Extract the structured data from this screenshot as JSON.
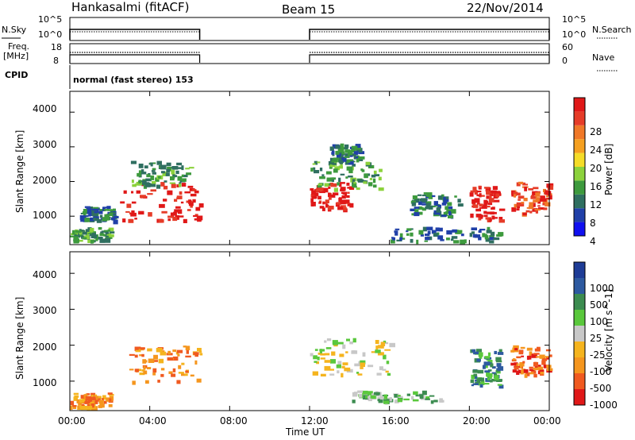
{
  "header": {
    "station": "Hankasalmi (fitACF)",
    "beam": "Beam 15",
    "date": "22/Nov/2014"
  },
  "strips": {
    "nsky_label": "N.Sky",
    "nsky_ticks": [
      "10^5",
      "10^0"
    ],
    "nsearch_label": "N.Search",
    "freq_label_1": "Freq.",
    "freq_label_2": "[MHz]",
    "freq_ticks": [
      "18",
      "8"
    ],
    "nave_label": "Nave",
    "nave_ticks": [
      "60",
      "0"
    ],
    "cpid_label": "CPID",
    "cpid_value": "normal (fast stereo) 153"
  },
  "colors": {
    "power": [
      "#1010f0",
      "#2040a8",
      "#2f6f60",
      "#3d9a3d",
      "#8cd23c",
      "#f5dc28",
      "#f5a020",
      "#f07828",
      "#e63c28",
      "#e01818"
    ],
    "velocity": [
      "#e01818",
      "#f05a20",
      "#f5961e",
      "#f5b41e",
      "#c8c8c8",
      "#5ac83c",
      "#3c8c50",
      "#2d5aa0",
      "#1e3c96"
    ],
    "ground_scatter": "#bebeb4"
  },
  "chart_data": [
    {
      "type": "heatmap",
      "title": "",
      "xlabel": "Time UT",
      "ylabel": "Slant Range [km]",
      "x_ticks": [
        "00:00",
        "04:00",
        "08:00",
        "12:00",
        "16:00",
        "20:00",
        "00:00"
      ],
      "y_ticks": [
        "1000",
        "2000",
        "3000",
        "4000"
      ],
      "xlim_hours": [
        0,
        24
      ],
      "ylim_km": [
        180,
        4600
      ],
      "colorbar_label": "Power [dB]",
      "colorbar_ticks": [
        "4",
        "8",
        "12",
        "16",
        "20",
        "24",
        "28"
      ],
      "data_gaps_hours": [
        [
          6.5,
          12.0
        ]
      ],
      "regions": [
        {
          "t0": 0.0,
          "t1": 2.0,
          "r0": 300,
          "r1": 700,
          "level": 3
        },
        {
          "t0": 0.5,
          "t1": 2.2,
          "r0": 900,
          "r1": 1300,
          "level": 2
        },
        {
          "t0": 2.5,
          "t1": 6.5,
          "r0": 900,
          "r1": 2000,
          "level": 9
        },
        {
          "t0": 3.0,
          "t1": 6.0,
          "r0": 1900,
          "r1": 2600,
          "level": 3
        },
        {
          "t0": 12.0,
          "t1": 14.0,
          "r0": 1200,
          "r1": 2000,
          "level": 9
        },
        {
          "t0": 12.0,
          "t1": 15.5,
          "r0": 1800,
          "r1": 2600,
          "level": 3
        },
        {
          "t0": 13.0,
          "t1": 14.5,
          "r0": 2600,
          "r1": 3100,
          "level": 2
        },
        {
          "t0": 17.0,
          "t1": 19.5,
          "r0": 1000,
          "r1": 1700,
          "level": 2
        },
        {
          "t0": 20.0,
          "t1": 21.5,
          "r0": 900,
          "r1": 1900,
          "level": 9
        },
        {
          "t0": 22.0,
          "t1": 24.0,
          "r0": 1100,
          "r1": 2000,
          "level": 8
        },
        {
          "t0": 16.0,
          "t1": 21.5,
          "r0": 300,
          "r1": 700,
          "level": 2
        }
      ]
    },
    {
      "type": "heatmap",
      "title": "",
      "xlabel": "Time UT",
      "ylabel": "Slant Range [km]",
      "x_ticks": [
        "00:00",
        "04:00",
        "08:00",
        "12:00",
        "16:00",
        "20:00",
        "00:00"
      ],
      "y_ticks": [
        "1000",
        "2000",
        "3000",
        "4000"
      ],
      "xlim_hours": [
        0,
        24
      ],
      "ylim_km": [
        180,
        4600
      ],
      "colorbar_label": "Velocity [m s^-1]",
      "colorbar_ticks": [
        "1000",
        "500",
        "100",
        "25",
        "-25",
        "-100",
        "-500",
        "-1000"
      ],
      "data_gaps_hours": [
        [
          6.5,
          12.0
        ]
      ],
      "regions": [
        {
          "t0": 0.0,
          "t1": 2.0,
          "r0": 300,
          "r1": 700,
          "level": 2
        },
        {
          "t0": 2.8,
          "t1": 6.5,
          "r0": 1000,
          "r1": 2000,
          "level": 2
        },
        {
          "t0": 12.0,
          "t1": 16.0,
          "r0": 1200,
          "r1": 2200,
          "level": 4
        },
        {
          "t0": 14.0,
          "t1": 18.5,
          "r0": 450,
          "r1": 750,
          "level": 5
        },
        {
          "t0": 20.0,
          "t1": 21.5,
          "r0": 900,
          "r1": 1900,
          "level": 6
        },
        {
          "t0": 22.0,
          "t1": 24.0,
          "r0": 1200,
          "r1": 2000,
          "level": 1
        }
      ]
    }
  ]
}
